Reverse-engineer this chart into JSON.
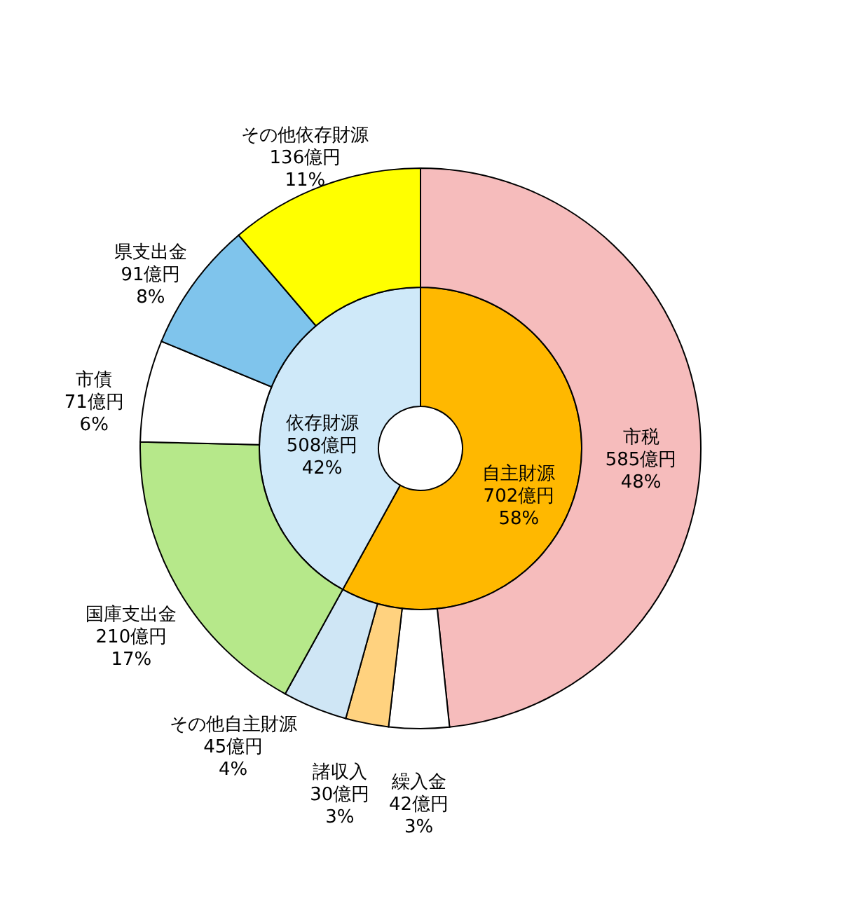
{
  "chart_data": [
    {
      "type": "donut",
      "categories": [
        "自主財源",
        "依存財源"
      ],
      "values": [
        702,
        508
      ],
      "colors": [
        "#ffb800",
        "#cfe9f9"
      ],
      "value_labels": [
        "702億円 58%",
        "508億円 42%"
      ]
    },
    {
      "type": "donut",
      "categories": [
        "市税",
        "繰入金",
        "諸収入",
        "その他自主財源",
        "国庫支出金",
        "市債",
        "県支出金",
        "その他依存財源"
      ],
      "values": [
        585,
        42,
        30,
        45,
        210,
        71,
        91,
        136
      ],
      "colors": [
        "#f6bcbc",
        "#ffffff",
        "#ffd27f",
        "#cfe6f5",
        "#b6e88a",
        "#ffffff",
        "#7fc4ec",
        "#ffff00"
      ],
      "value_labels": [
        "585億円 48%",
        "42億円 3%",
        "30億円 3%",
        "45億円 4%",
        "210億円 17%",
        "71億円 6%",
        "91億円 8%",
        "136億円 11%"
      ]
    }
  ]
}
